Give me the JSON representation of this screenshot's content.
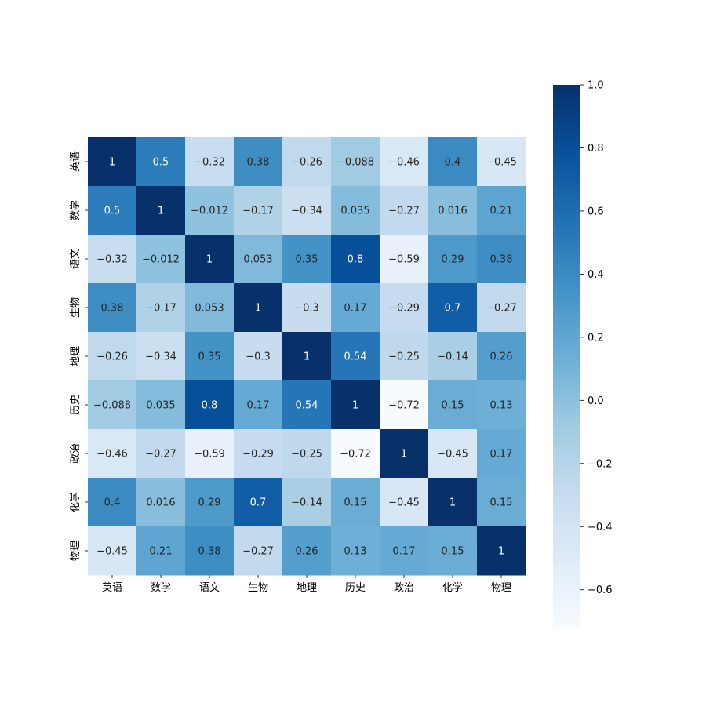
{
  "chart_data": {
    "type": "heatmap",
    "title": "",
    "xlabel": "",
    "ylabel": "",
    "x_categories": [
      "英语",
      "数学",
      "语文",
      "生物",
      "地理",
      "历史",
      "政治",
      "化学",
      "物理"
    ],
    "y_categories": [
      "英语",
      "数学",
      "语文",
      "生物",
      "地理",
      "历史",
      "政治",
      "化学",
      "物理"
    ],
    "values": [
      [
        1,
        0.5,
        -0.32,
        0.38,
        -0.26,
        -0.088,
        -0.46,
        0.4,
        -0.45
      ],
      [
        0.5,
        1,
        -0.012,
        -0.17,
        -0.34,
        0.035,
        -0.27,
        0.016,
        0.21
      ],
      [
        -0.32,
        -0.012,
        1,
        0.053,
        0.35,
        0.8,
        -0.59,
        0.29,
        0.38
      ],
      [
        0.38,
        -0.17,
        0.053,
        1,
        -0.3,
        0.17,
        -0.29,
        0.7,
        -0.27
      ],
      [
        -0.26,
        -0.34,
        0.35,
        -0.3,
        1,
        0.54,
        -0.25,
        -0.14,
        0.26
      ],
      [
        -0.088,
        0.035,
        0.8,
        0.17,
        0.54,
        1,
        -0.72,
        0.15,
        0.13
      ],
      [
        -0.46,
        -0.27,
        -0.59,
        -0.29,
        -0.25,
        -0.72,
        1,
        -0.45,
        0.17
      ],
      [
        0.4,
        0.016,
        0.29,
        0.7,
        -0.14,
        0.15,
        -0.45,
        1,
        0.15
      ],
      [
        -0.45,
        0.21,
        0.38,
        -0.27,
        0.26,
        0.13,
        0.17,
        0.15,
        1
      ]
    ],
    "annotations_shown": true,
    "colormap": "Blues",
    "color_range": [
      -0.72,
      1.0
    ],
    "colorbar": {
      "placement": "right",
      "ticks": [
        1.0,
        0.8,
        0.6,
        0.4,
        0.2,
        0.0,
        -0.2,
        -0.4,
        -0.6
      ],
      "tick_labels": [
        "1.0",
        "0.8",
        "0.6",
        "0.4",
        "0.2",
        "0.0",
        "−0.2",
        "−0.4",
        "−0.6"
      ]
    },
    "grid": false,
    "colors": {
      "low": "#f7fbff",
      "high": "#08306b"
    }
  }
}
